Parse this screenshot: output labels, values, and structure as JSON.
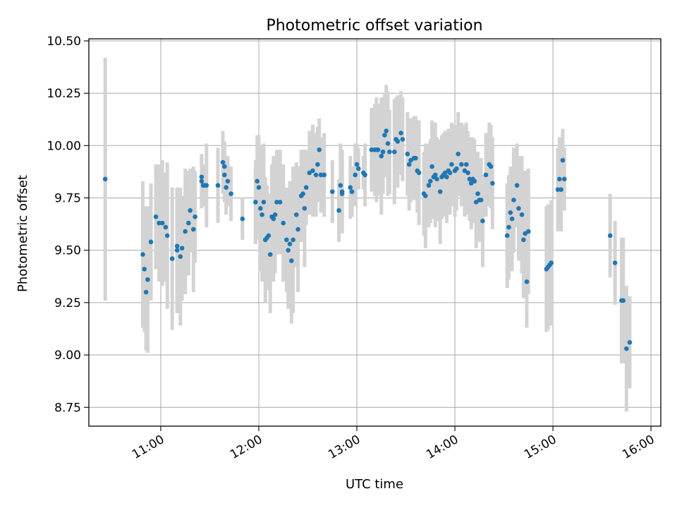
{
  "chart_data": {
    "type": "scatter",
    "title": "Photometric offset variation",
    "xlabel": "UTC time",
    "ylabel": "Photometric offset",
    "xlim": [
      "10:16",
      "16:06"
    ],
    "ylim": [
      8.66,
      10.51
    ],
    "grid": true,
    "legend": "none",
    "x_ticks": [
      "11:00",
      "12:00",
      "13:00",
      "14:00",
      "15:00",
      "16:00"
    ],
    "y_ticks": [
      "8.75",
      "9.00",
      "9.25",
      "9.50",
      "9.75",
      "10.00",
      "10.25",
      "10.50"
    ],
    "point_color": "#1f77b4",
    "errorbar_color": "#d3d3d3",
    "series": [
      {
        "points": [
          {
            "x": "10:26",
            "y": 9.84,
            "err": 0.58
          },
          {
            "x": "10:49",
            "y": 9.48,
            "err": 0.35
          },
          {
            "x": "10:50",
            "y": 9.41,
            "err": 0.3
          },
          {
            "x": "10:51",
            "y": 9.3,
            "err": 0.28
          },
          {
            "x": "10:52",
            "y": 9.36,
            "err": 0.35
          },
          {
            "x": "10:54",
            "y": 9.54,
            "err": 0.28
          },
          {
            "x": "10:57",
            "y": 9.66,
            "err": 0.25
          },
          {
            "x": "10:59",
            "y": 9.63,
            "err": 0.28
          },
          {
            "x": "11:01",
            "y": 9.63,
            "err": 0.3
          },
          {
            "x": "11:03",
            "y": 9.61,
            "err": 0.26
          },
          {
            "x": "11:04",
            "y": 9.57,
            "err": 0.35
          },
          {
            "x": "11:07",
            "y": 9.46,
            "err": 0.34
          },
          {
            "x": "11:10",
            "y": 9.5,
            "err": 0.3
          },
          {
            "x": "11:10",
            "y": 9.52,
            "err": 0.28
          },
          {
            "x": "11:12",
            "y": 9.47,
            "err": 0.33
          },
          {
            "x": "11:13",
            "y": 9.51,
            "err": 0.25
          },
          {
            "x": "11:15",
            "y": 9.59,
            "err": 0.3
          },
          {
            "x": "11:17",
            "y": 9.63,
            "err": 0.25
          },
          {
            "x": "11:18",
            "y": 9.69,
            "err": 0.2
          },
          {
            "x": "11:20",
            "y": 9.6,
            "err": 0.3
          },
          {
            "x": "11:21",
            "y": 9.66,
            "err": 0.22
          },
          {
            "x": "11:25",
            "y": 9.83,
            "err": 0.13
          },
          {
            "x": "11:25",
            "y": 9.85,
            "err": 0.1
          },
          {
            "x": "11:26",
            "y": 9.81,
            "err": 0.1
          },
          {
            "x": "11:27",
            "y": 9.81,
            "err": 0.1
          },
          {
            "x": "11:28",
            "y": 9.81,
            "err": 0.2
          },
          {
            "x": "11:35",
            "y": 9.81,
            "err": 0.18
          },
          {
            "x": "11:38",
            "y": 9.92,
            "err": 0.15
          },
          {
            "x": "11:39",
            "y": 9.86,
            "err": 0.13
          },
          {
            "x": "11:39",
            "y": 9.9,
            "err": 0.12
          },
          {
            "x": "11:40",
            "y": 9.8,
            "err": 0.13
          },
          {
            "x": "11:41",
            "y": 9.83,
            "err": 0.12
          },
          {
            "x": "11:43",
            "y": 9.77,
            "err": 0.13
          },
          {
            "x": "11:50",
            "y": 9.65,
            "err": 0.1
          },
          {
            "x": "11:58",
            "y": 9.73,
            "err": 0.2
          },
          {
            "x": "11:59",
            "y": 9.83,
            "err": 0.22
          },
          {
            "x": "12:00",
            "y": 9.8,
            "err": 0.25
          },
          {
            "x": "12:01",
            "y": 9.7,
            "err": 0.3
          },
          {
            "x": "12:02",
            "y": 9.67,
            "err": 0.32
          },
          {
            "x": "12:03",
            "y": 9.73,
            "err": 0.28
          },
          {
            "x": "12:04",
            "y": 9.55,
            "err": 0.3
          },
          {
            "x": "12:05",
            "y": 9.56,
            "err": 0.25
          },
          {
            "x": "12:06",
            "y": 9.57,
            "err": 0.2
          },
          {
            "x": "12:07",
            "y": 9.48,
            "err": 0.28
          },
          {
            "x": "12:08",
            "y": 9.66,
            "err": 0.25
          },
          {
            "x": "12:09",
            "y": 9.65,
            "err": 0.3
          },
          {
            "x": "12:10",
            "y": 9.67,
            "err": 0.28
          },
          {
            "x": "12:11",
            "y": 9.73,
            "err": 0.25
          },
          {
            "x": "12:13",
            "y": 9.73,
            "err": 0.25
          },
          {
            "x": "12:15",
            "y": 9.63,
            "err": 0.28
          },
          {
            "x": "12:17",
            "y": 9.55,
            "err": 0.25
          },
          {
            "x": "12:18",
            "y": 9.5,
            "err": 0.28
          },
          {
            "x": "12:19",
            "y": 9.53,
            "err": 0.3
          },
          {
            "x": "12:20",
            "y": 9.45,
            "err": 0.3
          },
          {
            "x": "12:21",
            "y": 9.55,
            "err": 0.35
          },
          {
            "x": "12:23",
            "y": 9.67,
            "err": 0.25
          },
          {
            "x": "12:24",
            "y": 9.6,
            "err": 0.3
          },
          {
            "x": "12:26",
            "y": 9.76,
            "err": 0.22
          },
          {
            "x": "12:27",
            "y": 9.77,
            "err": 0.2
          },
          {
            "x": "12:28",
            "y": 9.7,
            "err": 0.28
          },
          {
            "x": "12:29",
            "y": 9.8,
            "err": 0.18
          },
          {
            "x": "12:31",
            "y": 9.87,
            "err": 0.2
          },
          {
            "x": "12:33",
            "y": 9.88,
            "err": 0.22
          },
          {
            "x": "12:35",
            "y": 9.86,
            "err": 0.2
          },
          {
            "x": "12:36",
            "y": 9.91,
            "err": 0.18
          },
          {
            "x": "12:37",
            "y": 9.98,
            "err": 0.15
          },
          {
            "x": "12:38",
            "y": 9.86,
            "err": 0.18
          },
          {
            "x": "12:40",
            "y": 9.86,
            "err": 0.2
          },
          {
            "x": "12:45",
            "y": 9.78,
            "err": 0.15
          },
          {
            "x": "12:49",
            "y": 9.69,
            "err": 0.15
          },
          {
            "x": "12:50",
            "y": 9.81,
            "err": 0.2
          },
          {
            "x": "12:51",
            "y": 9.77,
            "err": 0.18
          },
          {
            "x": "12:51",
            "y": 9.78,
            "err": 0.2
          },
          {
            "x": "12:56",
            "y": 9.8,
            "err": 0.15
          },
          {
            "x": "12:57",
            "y": 9.78,
            "err": 0.12
          },
          {
            "x": "12:59",
            "y": 9.86,
            "err": 0.15
          },
          {
            "x": "13:00",
            "y": 9.91,
            "err": 0.1
          },
          {
            "x": "13:01",
            "y": 9.89,
            "err": 0.1
          },
          {
            "x": "13:04",
            "y": 9.87,
            "err": 0.08
          },
          {
            "x": "13:05",
            "y": 9.86,
            "err": 0.15
          },
          {
            "x": "13:09",
            "y": 9.98,
            "err": 0.2
          },
          {
            "x": "13:11",
            "y": 9.98,
            "err": 0.22
          },
          {
            "x": "13:12",
            "y": 9.98,
            "err": 0.25
          },
          {
            "x": "13:13",
            "y": 9.98,
            "err": 0.22
          },
          {
            "x": "13:15",
            "y": 9.95,
            "err": 0.28
          },
          {
            "x": "13:16",
            "y": 9.97,
            "err": 0.2
          },
          {
            "x": "13:17",
            "y": 10.05,
            "err": 0.2
          },
          {
            "x": "13:18",
            "y": 10.07,
            "err": 0.22
          },
          {
            "x": "13:19",
            "y": 10.01,
            "err": 0.25
          },
          {
            "x": "13:20",
            "y": 9.97,
            "err": 0.2
          },
          {
            "x": "13:23",
            "y": 9.97,
            "err": 0.25
          },
          {
            "x": "13:24",
            "y": 10.03,
            "err": 0.2
          },
          {
            "x": "13:25",
            "y": 10.02,
            "err": 0.22
          },
          {
            "x": "13:27",
            "y": 10.06,
            "err": 0.2
          },
          {
            "x": "13:28",
            "y": 10.03,
            "err": 0.2
          },
          {
            "x": "13:31",
            "y": 9.96,
            "err": 0.2
          },
          {
            "x": "13:32",
            "y": 9.91,
            "err": 0.22
          },
          {
            "x": "13:33",
            "y": 9.93,
            "err": 0.2
          },
          {
            "x": "13:35",
            "y": 9.94,
            "err": 0.2
          },
          {
            "x": "13:36",
            "y": 9.94,
            "err": 0.2
          },
          {
            "x": "13:37",
            "y": 9.88,
            "err": 0.2
          },
          {
            "x": "13:38",
            "y": 9.87,
            "err": 0.25
          },
          {
            "x": "13:41",
            "y": 9.77,
            "err": 0.2
          },
          {
            "x": "13:42",
            "y": 9.76,
            "err": 0.25
          },
          {
            "x": "13:44",
            "y": 9.81,
            "err": 0.2
          },
          {
            "x": "13:45",
            "y": 9.83,
            "err": 0.2
          },
          {
            "x": "13:46",
            "y": 9.9,
            "err": 0.22
          },
          {
            "x": "13:47",
            "y": 9.85,
            "err": 0.2
          },
          {
            "x": "13:48",
            "y": 9.86,
            "err": 0.25
          },
          {
            "x": "13:49",
            "y": 9.84,
            "err": 0.2
          },
          {
            "x": "13:51",
            "y": 9.78,
            "err": 0.25
          },
          {
            "x": "13:52",
            "y": 9.85,
            "err": 0.2
          },
          {
            "x": "13:53",
            "y": 9.86,
            "err": 0.2
          },
          {
            "x": "13:54",
            "y": 9.87,
            "err": 0.2
          },
          {
            "x": "13:55",
            "y": 9.85,
            "err": 0.22
          },
          {
            "x": "13:56",
            "y": 9.88,
            "err": 0.2
          },
          {
            "x": "13:57",
            "y": 9.87,
            "err": 0.2
          },
          {
            "x": "13:58",
            "y": 9.91,
            "err": 0.2
          },
          {
            "x": "14:00",
            "y": 9.88,
            "err": 0.22
          },
          {
            "x": "14:01",
            "y": 9.89,
            "err": 0.2
          },
          {
            "x": "14:02",
            "y": 9.96,
            "err": 0.2
          },
          {
            "x": "14:04",
            "y": 9.91,
            "err": 0.2
          },
          {
            "x": "14:06",
            "y": 9.88,
            "err": 0.22
          },
          {
            "x": "14:07",
            "y": 9.91,
            "err": 0.2
          },
          {
            "x": "14:08",
            "y": 9.87,
            "err": 0.2
          },
          {
            "x": "14:09",
            "y": 9.84,
            "err": 0.2
          },
          {
            "x": "14:10",
            "y": 9.82,
            "err": 0.22
          },
          {
            "x": "14:11",
            "y": 9.84,
            "err": 0.2
          },
          {
            "x": "14:12",
            "y": 9.83,
            "err": 0.2
          },
          {
            "x": "14:13",
            "y": 9.73,
            "err": 0.22
          },
          {
            "x": "14:14",
            "y": 9.77,
            "err": 0.2
          },
          {
            "x": "14:15",
            "y": 9.74,
            "err": 0.2
          },
          {
            "x": "14:16",
            "y": 9.74,
            "err": 0.2
          },
          {
            "x": "14:17",
            "y": 9.64,
            "err": 0.22
          },
          {
            "x": "14:19",
            "y": 9.86,
            "err": 0.2
          },
          {
            "x": "14:21",
            "y": 9.91,
            "err": 0.2
          },
          {
            "x": "14:22",
            "y": 9.9,
            "err": 0.2
          },
          {
            "x": "14:23",
            "y": 9.82,
            "err": 0.22
          },
          {
            "x": "14:32",
            "y": 9.57,
            "err": 0.25
          },
          {
            "x": "14:33",
            "y": 9.61,
            "err": 0.25
          },
          {
            "x": "14:34",
            "y": 9.68,
            "err": 0.22
          },
          {
            "x": "14:35",
            "y": 9.65,
            "err": 0.25
          },
          {
            "x": "14:36",
            "y": 9.74,
            "err": 0.25
          },
          {
            "x": "14:38",
            "y": 9.81,
            "err": 0.2
          },
          {
            "x": "14:39",
            "y": 9.7,
            "err": 0.25
          },
          {
            "x": "14:41",
            "y": 9.67,
            "err": 0.28
          },
          {
            "x": "14:42",
            "y": 9.55,
            "err": 0.28
          },
          {
            "x": "14:43",
            "y": 9.58,
            "err": 0.3
          },
          {
            "x": "14:44",
            "y": 9.35,
            "err": 0.22
          },
          {
            "x": "14:45",
            "y": 9.59,
            "err": 0.3
          },
          {
            "x": "14:56",
            "y": 9.41,
            "err": 0.3
          },
          {
            "x": "14:57",
            "y": 9.42,
            "err": 0.3
          },
          {
            "x": "14:58",
            "y": 9.43,
            "err": 0.28
          },
          {
            "x": "14:59",
            "y": 9.44,
            "err": 0.3
          },
          {
            "x": "15:03",
            "y": 9.79,
            "err": 0.2
          },
          {
            "x": "15:04",
            "y": 9.84,
            "err": 0.2
          },
          {
            "x": "15:05",
            "y": 9.79,
            "err": 0.2
          },
          {
            "x": "15:06",
            "y": 9.93,
            "err": 0.15
          },
          {
            "x": "15:07",
            "y": 9.84,
            "err": 0.15
          },
          {
            "x": "15:35",
            "y": 9.57,
            "err": 0.2
          },
          {
            "x": "15:38",
            "y": 9.44,
            "err": 0.2
          },
          {
            "x": "15:42",
            "y": 9.26,
            "err": 0.3
          },
          {
            "x": "15:43",
            "y": 9.26,
            "err": 0.3
          },
          {
            "x": "15:45",
            "y": 9.03,
            "err": 0.3
          },
          {
            "x": "15:47",
            "y": 9.06,
            "err": 0.22
          }
        ]
      }
    ]
  }
}
